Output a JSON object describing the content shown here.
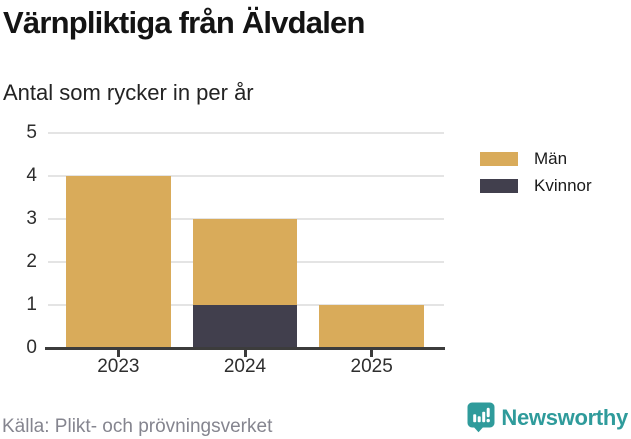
{
  "chart_data": {
    "type": "bar",
    "stacked": true,
    "title": "Värnpliktiga från Älvdalen",
    "subtitle": "Antal som rycker in per år",
    "categories": [
      "2023",
      "2024",
      "2025"
    ],
    "series": [
      {
        "name": "Män",
        "color": "#d9ab5a",
        "values": [
          4,
          2,
          1
        ]
      },
      {
        "name": "Kvinnor",
        "color": "#413f4d",
        "values": [
          0,
          1,
          0
        ]
      }
    ],
    "stack_order_bottom_to_top": [
      "Kvinnor",
      "Män"
    ],
    "totals": [
      4,
      3,
      1
    ],
    "xlabel": "",
    "ylabel": "",
    "ylim": [
      0,
      5
    ],
    "yticks": [
      0,
      1,
      2,
      3,
      4,
      5
    ],
    "grid": true,
    "legend_position": "right"
  },
  "footer": {
    "source": "Källa: Plikt- och prövningsverket",
    "brand": "Newsworthy"
  },
  "colors": {
    "men": "#d9ab5a",
    "women": "#413f4d",
    "teal": "#2f9b9b",
    "gridline": "#e4e4e4",
    "axis": "#3c3c3c",
    "source_text": "#85858f"
  },
  "icons": {
    "brand_icon": "newsworthy-bar-chart-speech-bubble"
  }
}
